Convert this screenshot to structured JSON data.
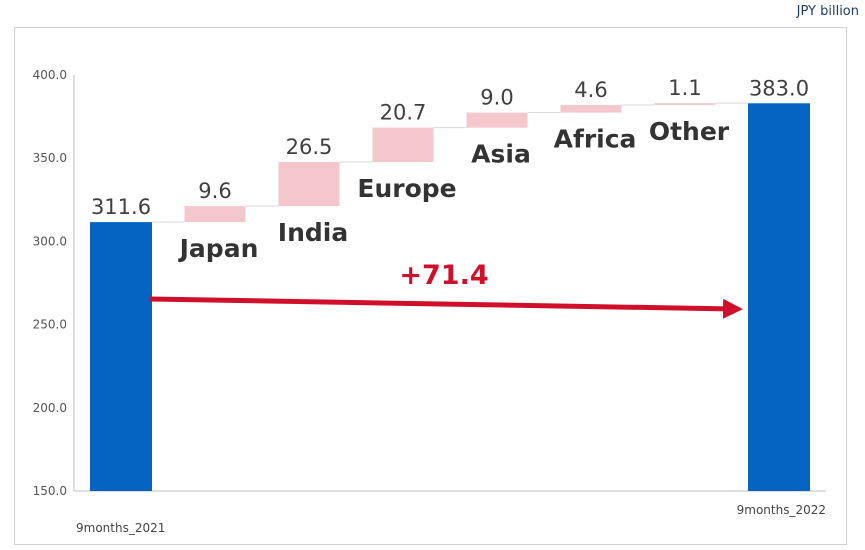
{
  "unit_label": "JPY  billion",
  "chart_data": {
    "type": "bar",
    "subtype": "waterfall",
    "start": {
      "label": "9months_2021",
      "value": 311.6
    },
    "end": {
      "label": "9months_2022",
      "value": 383.0
    },
    "steps": [
      {
        "label": "Japan",
        "value": 9.6,
        "display": "9.6"
      },
      {
        "label": "India",
        "value": 26.5,
        "display": "26.5"
      },
      {
        "label": "Europe",
        "value": 20.7,
        "display": "20.7"
      },
      {
        "label": "Asia",
        "value": 9.0,
        "display": "9.0"
      },
      {
        "label": "Africa",
        "value": 4.6,
        "display": "4.6"
      },
      {
        "label": "Other",
        "value": 1.1,
        "display": "1.1"
      }
    ],
    "start_display": "311.6",
    "end_display": "383.0",
    "total_change": "+71.4",
    "ylim": [
      150,
      400
    ],
    "yticks": [
      "150.0",
      "200.0",
      "250.0",
      "300.0",
      "350.0",
      "400.0"
    ],
    "grid": false,
    "colors": {
      "total_bar": "#0563c1",
      "step_bar": "#f4c7cd",
      "arrow": "#d0102a",
      "connector": "#d9d9d9"
    }
  }
}
